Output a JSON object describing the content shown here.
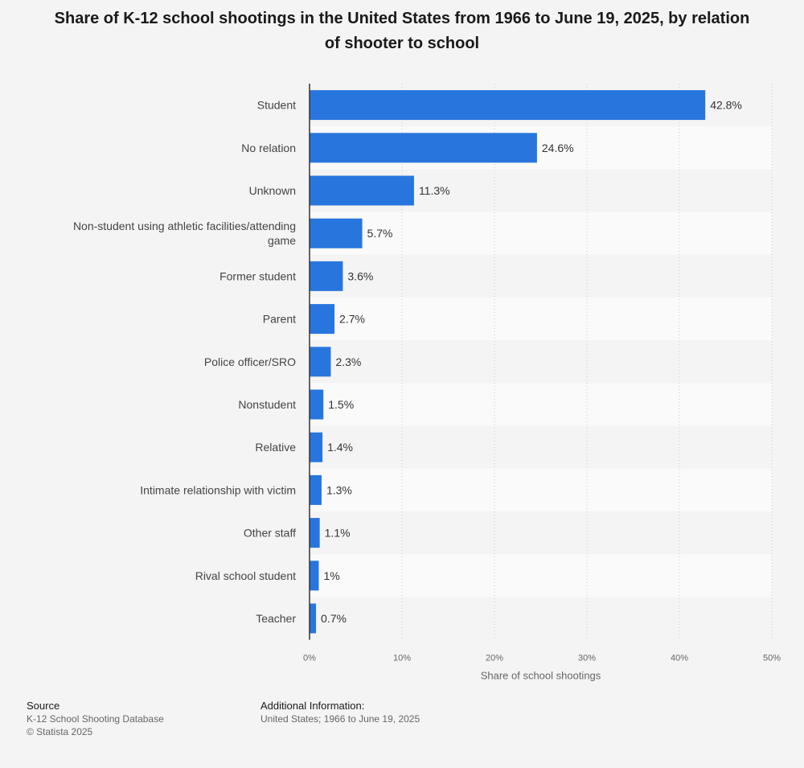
{
  "chart_data": {
    "type": "bar",
    "orientation": "horizontal",
    "title": "Share of K-12 school shootings in the United States from 1966 to June 19, 2025, by relation of shooter to school",
    "categories": [
      "Student",
      "No relation",
      "Unknown",
      "Non-student using athletic facilities/attending game",
      "Former student",
      "Parent",
      "Police officer/SRO",
      "Nonstudent",
      "Relative",
      "Intimate relationship with victim",
      "Other staff",
      "Rival school student",
      "Teacher"
    ],
    "category_display_lines": [
      [
        "Student"
      ],
      [
        "No relation"
      ],
      [
        "Unknown"
      ],
      [
        "Non-student using athletic facilities/attending",
        "game"
      ],
      [
        "Former student"
      ],
      [
        "Parent"
      ],
      [
        "Police officer/SRO"
      ],
      [
        "Nonstudent"
      ],
      [
        "Relative"
      ],
      [
        "Intimate relationship with victim"
      ],
      [
        "Other staff"
      ],
      [
        "Rival school student"
      ],
      [
        "Teacher"
      ]
    ],
    "values": [
      42.8,
      24.6,
      11.3,
      5.7,
      3.6,
      2.7,
      2.3,
      1.5,
      1.4,
      1.3,
      1.1,
      1,
      0.7
    ],
    "value_labels": [
      "42.8%",
      "24.6%",
      "11.3%",
      "5.7%",
      "3.6%",
      "2.7%",
      "2.3%",
      "1.5%",
      "1.4%",
      "1.3%",
      "1.1%",
      "1%",
      "0.7%"
    ],
    "xlabel": "Share of school shootings",
    "xlim": [
      0,
      50
    ],
    "ticks": [
      0,
      10,
      20,
      30,
      40,
      50
    ],
    "tick_labels": [
      "0%",
      "10%",
      "20%",
      "30%",
      "40%",
      "50%"
    ],
    "grid": "vertical dotted",
    "bar_color": "#2876dd",
    "band_colors": [
      "#f4f4f4",
      "#fafafa"
    ]
  },
  "footer": {
    "source_heading": "Source",
    "source_line": "K-12 School Shooting Database",
    "copyright": "© Statista 2025",
    "additional_heading": "Additional Information:",
    "additional_line": "United States; 1966 to June 19, 2025"
  }
}
